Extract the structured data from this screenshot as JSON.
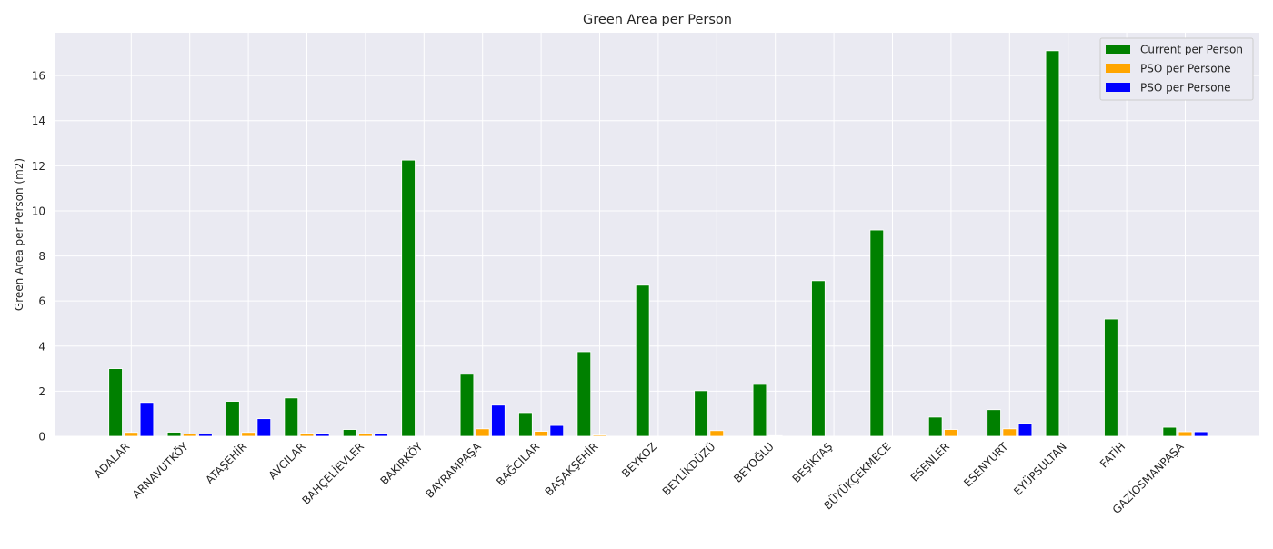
{
  "chart_data": {
    "type": "bar",
    "title": "Green Area per Person",
    "xlabel": "",
    "ylabel": "Green Area per Person (m2)",
    "ylim": [
      0,
      17.9
    ],
    "yticks": [
      0,
      2,
      4,
      6,
      8,
      10,
      12,
      14,
      16
    ],
    "grid": true,
    "legend_position": "top-right",
    "categories": [
      "ADALAR",
      "ARNAVUTKÖY",
      "ATAŞEHİR",
      "AVCILAR",
      "BAHÇELİEVLER",
      "BAKIRKÖY",
      "BAYRAMPAŞA",
      "BAĞCILAR",
      "BAŞAKŞEHİR",
      "BEYKOZ",
      "BEYLİKDÜZÜ",
      "BEYOĞLU",
      "BEŞİKTAŞ",
      "BÜYÜKÇEKMECE",
      "ESENLER",
      "ESENYURT",
      "EYÜPSULTAN",
      "FATİH",
      "GAZİOSMANPAŞA"
    ],
    "series": [
      {
        "name": "Current per Person",
        "color": "#008000",
        "values": [
          3.0,
          0.18,
          1.55,
          1.7,
          0.3,
          12.25,
          2.75,
          1.05,
          3.75,
          6.7,
          2.02,
          2.3,
          6.9,
          9.15,
          0.85,
          1.18,
          17.1,
          5.2,
          0.4
        ]
      },
      {
        "name": "PSO per Persone",
        "color": "#ffa500",
        "values": [
          0.17,
          0.1,
          0.17,
          0.13,
          0.12,
          0.0,
          0.33,
          0.22,
          0.05,
          0.0,
          0.25,
          0.03,
          0.0,
          0.0,
          0.3,
          0.33,
          0.0,
          0.0,
          0.2
        ]
      },
      {
        "name": "PSO per Persone",
        "color": "#0000ff",
        "values": [
          1.5,
          0.1,
          0.78,
          0.13,
          0.12,
          0.0,
          1.38,
          0.48,
          0.0,
          0.0,
          0.0,
          0.0,
          0.0,
          0.0,
          0.0,
          0.57,
          0.0,
          0.0,
          0.2
        ]
      }
    ]
  }
}
